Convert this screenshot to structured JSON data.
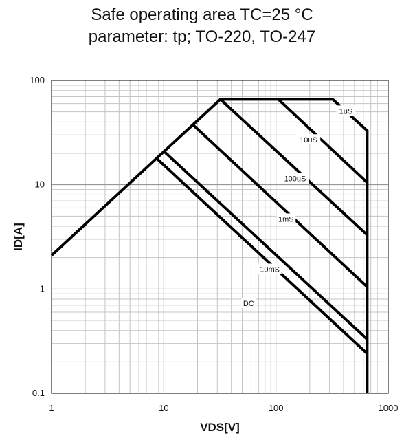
{
  "chart_data": {
    "type": "line",
    "title": "Safe operating area TC=25 °C",
    "subtitle": "parameter: tp; TO-220, TO-247",
    "xlabel": "VDS[V]",
    "ylabel": "ID[A]",
    "xscale": "log",
    "yscale": "log",
    "xlim": [
      1,
      1000
    ],
    "ylim": [
      0.1,
      100
    ],
    "xticks": [
      1,
      10,
      100,
      1000
    ],
    "xtick_labels": [
      "1",
      "10",
      "100",
      "1000"
    ],
    "yticks": [
      0.1,
      1,
      10,
      100
    ],
    "ytick_labels": [
      "0.1",
      "1",
      "10",
      "100"
    ],
    "grid": true,
    "line_color": "#000000",
    "series": [
      {
        "name": "1uS",
        "x": [
          1,
          32,
          320,
          650,
          650
        ],
        "y": [
          2.1,
          66,
          66,
          33,
          0.1
        ]
      },
      {
        "name": "10uS",
        "x": [
          105,
          650
        ],
        "y": [
          66,
          10.5
        ]
      },
      {
        "name": "100uS",
        "x": [
          32,
          650
        ],
        "y": [
          66,
          3.3
        ]
      },
      {
        "name": "1mS",
        "x": [
          18,
          650
        ],
        "y": [
          38,
          1.05
        ]
      },
      {
        "name": "10mS",
        "x": [
          10,
          650
        ],
        "y": [
          21,
          0.33
        ]
      },
      {
        "name": "DC",
        "x": [
          8.6,
          650
        ],
        "y": [
          18,
          0.24
        ]
      }
    ],
    "labels": [
      {
        "text": "1uS",
        "x": 420,
        "y": 51
      },
      {
        "text": "10uS",
        "x": 195,
        "y": 27
      },
      {
        "text": "100uS",
        "x": 148,
        "y": 11.5
      },
      {
        "text": "1mS",
        "x": 123,
        "y": 4.7
      },
      {
        "text": "10mS",
        "x": 88,
        "y": 1.55
      },
      {
        "text": "DC",
        "x": 57,
        "y": 0.73
      }
    ]
  }
}
